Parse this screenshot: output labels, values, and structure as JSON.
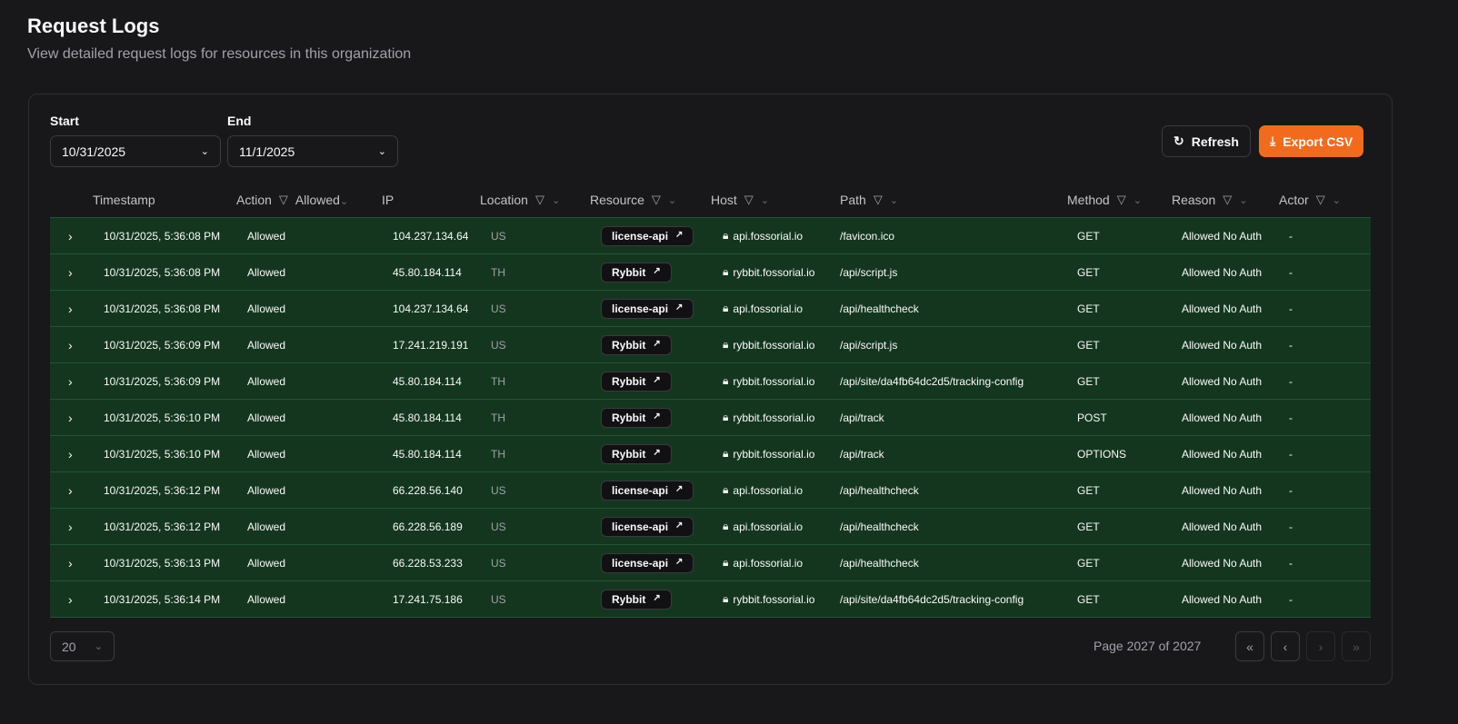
{
  "header": {
    "title": "Request Logs",
    "subtitle": "View detailed request logs for resources in this organization"
  },
  "filters": {
    "start_label": "Start",
    "start_value": "10/31/2025",
    "end_label": "End",
    "end_value": "11/1/2025"
  },
  "toolbar": {
    "refresh_label": "Refresh",
    "export_label": "Export CSV",
    "accent": "#f26b1d"
  },
  "columns": {
    "timestamp": "Timestamp",
    "action": "Action",
    "action_filter": "Allowed",
    "ip": "IP",
    "location": "Location",
    "resource": "Resource",
    "host": "Host",
    "path": "Path",
    "method": "Method",
    "reason": "Reason",
    "actor": "Actor"
  },
  "rows": [
    {
      "timestamp": "10/31/2025, 5:36:08 PM",
      "action": "Allowed",
      "ip": "104.237.134.64",
      "location": "US",
      "resource": "license-api",
      "host": "api.fossorial.io",
      "path": "/favicon.ico",
      "method": "GET",
      "reason": "Allowed No Auth",
      "actor": "-"
    },
    {
      "timestamp": "10/31/2025, 5:36:08 PM",
      "action": "Allowed",
      "ip": "45.80.184.114",
      "location": "TH",
      "resource": "Rybbit",
      "host": "rybbit.fossorial.io",
      "path": "/api/script.js",
      "method": "GET",
      "reason": "Allowed No Auth",
      "actor": "-"
    },
    {
      "timestamp": "10/31/2025, 5:36:08 PM",
      "action": "Allowed",
      "ip": "104.237.134.64",
      "location": "US",
      "resource": "license-api",
      "host": "api.fossorial.io",
      "path": "/api/healthcheck",
      "method": "GET",
      "reason": "Allowed No Auth",
      "actor": "-"
    },
    {
      "timestamp": "10/31/2025, 5:36:09 PM",
      "action": "Allowed",
      "ip": "17.241.219.191",
      "location": "US",
      "resource": "Rybbit",
      "host": "rybbit.fossorial.io",
      "path": "/api/script.js",
      "method": "GET",
      "reason": "Allowed No Auth",
      "actor": "-"
    },
    {
      "timestamp": "10/31/2025, 5:36:09 PM",
      "action": "Allowed",
      "ip": "45.80.184.114",
      "location": "TH",
      "resource": "Rybbit",
      "host": "rybbit.fossorial.io",
      "path": "/api/site/da4fb64dc2d5/tracking-config",
      "method": "GET",
      "reason": "Allowed No Auth",
      "actor": "-"
    },
    {
      "timestamp": "10/31/2025, 5:36:10 PM",
      "action": "Allowed",
      "ip": "45.80.184.114",
      "location": "TH",
      "resource": "Rybbit",
      "host": "rybbit.fossorial.io",
      "path": "/api/track",
      "method": "POST",
      "reason": "Allowed No Auth",
      "actor": "-"
    },
    {
      "timestamp": "10/31/2025, 5:36:10 PM",
      "action": "Allowed",
      "ip": "45.80.184.114",
      "location": "TH",
      "resource": "Rybbit",
      "host": "rybbit.fossorial.io",
      "path": "/api/track",
      "method": "OPTIONS",
      "reason": "Allowed No Auth",
      "actor": "-"
    },
    {
      "timestamp": "10/31/2025, 5:36:12 PM",
      "action": "Allowed",
      "ip": "66.228.56.140",
      "location": "US",
      "resource": "license-api",
      "host": "api.fossorial.io",
      "path": "/api/healthcheck",
      "method": "GET",
      "reason": "Allowed No Auth",
      "actor": "-"
    },
    {
      "timestamp": "10/31/2025, 5:36:12 PM",
      "action": "Allowed",
      "ip": "66.228.56.189",
      "location": "US",
      "resource": "license-api",
      "host": "api.fossorial.io",
      "path": "/api/healthcheck",
      "method": "GET",
      "reason": "Allowed No Auth",
      "actor": "-"
    },
    {
      "timestamp": "10/31/2025, 5:36:13 PM",
      "action": "Allowed",
      "ip": "66.228.53.233",
      "location": "US",
      "resource": "license-api",
      "host": "api.fossorial.io",
      "path": "/api/healthcheck",
      "method": "GET",
      "reason": "Allowed No Auth",
      "actor": "-"
    },
    {
      "timestamp": "10/31/2025, 5:36:14 PM",
      "action": "Allowed",
      "ip": "17.241.75.186",
      "location": "US",
      "resource": "Rybbit",
      "host": "rybbit.fossorial.io",
      "path": "/api/site/da4fb64dc2d5/tracking-config",
      "method": "GET",
      "reason": "Allowed No Auth",
      "actor": "-"
    }
  ],
  "pagination": {
    "page_size": "20",
    "page_text": "Page 2027 of 2027"
  }
}
